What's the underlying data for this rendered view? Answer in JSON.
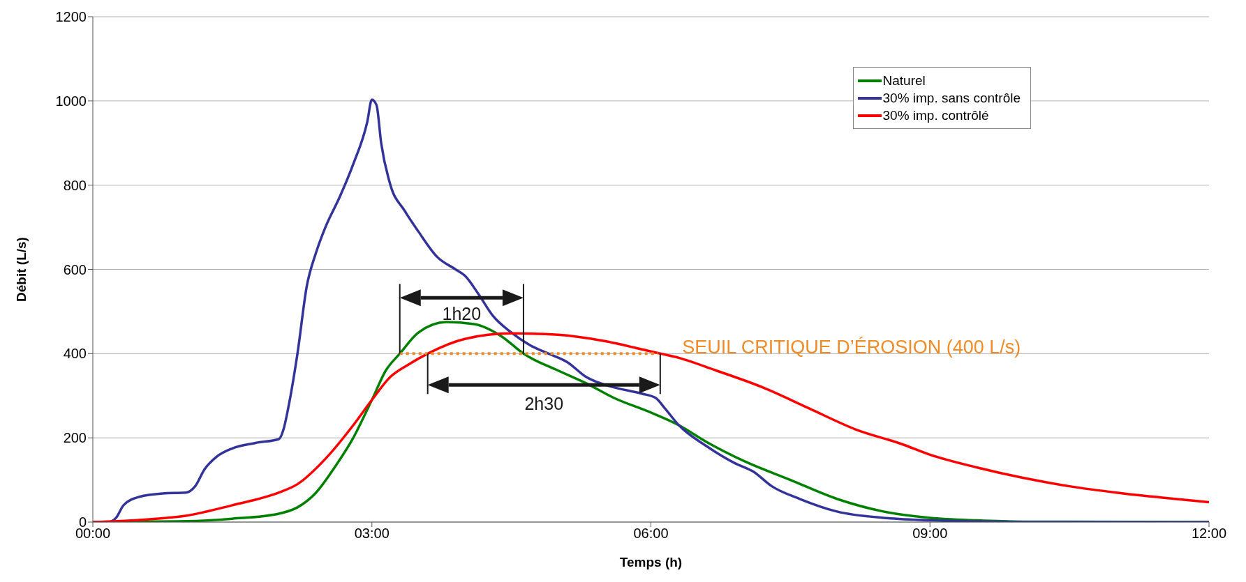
{
  "chart_data": {
    "type": "line",
    "xlabel": "Temps (h)",
    "ylabel": "Débit (L/s)",
    "xlim": [
      0,
      12
    ],
    "xticks": [
      {
        "value": 0,
        "label": "00:00"
      },
      {
        "value": 3,
        "label": "03:00"
      },
      {
        "value": 6,
        "label": "06:00"
      },
      {
        "value": 9,
        "label": "09:00"
      },
      {
        "value": 12,
        "label": "12:00"
      }
    ],
    "ylim": [
      0,
      1200
    ],
    "yticks": [
      0,
      200,
      400,
      600,
      800,
      1000,
      1200
    ],
    "grid": "y",
    "legend": "top right",
    "marker": "none",
    "series": [
      {
        "name": "Naturel",
        "color": "#008000",
        "x": [
          0,
          1,
          1.5,
          2,
          2.2,
          2.4,
          2.6,
          2.8,
          3,
          3.15,
          3.3,
          3.5,
          3.8,
          4.1,
          4.4,
          4.63,
          5,
          5.3,
          5.6,
          6,
          6.3,
          6.6,
          7,
          7.5,
          8,
          8.5,
          9,
          9.5,
          10,
          12
        ],
        "values": [
          0,
          2,
          8,
          20,
          35,
          70,
          130,
          200,
          290,
          360,
          400,
          450,
          475,
          470,
          440,
          400,
          360,
          330,
          295,
          260,
          230,
          190,
          145,
          100,
          55,
          25,
          10,
          4,
          1,
          0
        ]
      },
      {
        "name": "30% imp. sans contrôle",
        "color": "#333399",
        "x": [
          0,
          0.17,
          0.25,
          0.33,
          0.5,
          0.75,
          1,
          1.1,
          1.2,
          1.33,
          1.5,
          1.75,
          2,
          2.05,
          2.1,
          2.2,
          2.3,
          2.4,
          2.5,
          2.65,
          2.8,
          2.95,
          3,
          3.05,
          3.1,
          3.2,
          3.35,
          3.5,
          3.7,
          3.9,
          4,
          4.15,
          4.3,
          4.5,
          4.7,
          4.9,
          5.1,
          5.3,
          5.6,
          5.9,
          6.05,
          6.15,
          6.3,
          6.6,
          6.9,
          7.1,
          7.3,
          7.6,
          8,
          8.5,
          9,
          10,
          12
        ],
        "values": [
          0,
          0,
          10,
          40,
          60,
          68,
          70,
          85,
          125,
          155,
          175,
          188,
          197,
          220,
          270,
          400,
          560,
          640,
          700,
          770,
          850,
          950,
          1003,
          990,
          900,
          800,
          740,
          690,
          630,
          600,
          585,
          540,
          490,
          450,
          420,
          400,
          380,
          345,
          320,
          305,
          295,
          270,
          230,
          180,
          140,
          120,
          85,
          55,
          25,
          10,
          4,
          0,
          0
        ]
      },
      {
        "name": "30% imp. contrôlé",
        "color": "#ff0000",
        "x": [
          0,
          0.5,
          1,
          1.5,
          2,
          2.2,
          2.5,
          2.8,
          3,
          3.2,
          3.4,
          3.6,
          4,
          4.5,
          5,
          5.5,
          6,
          6.3,
          6.7,
          7.2,
          7.7,
          8.2,
          8.7,
          9,
          9.5,
          10,
          10.5,
          11,
          11.5,
          12
        ],
        "values": [
          0,
          5,
          15,
          40,
          70,
          90,
          150,
          230,
          290,
          345,
          375,
          400,
          435,
          448,
          445,
          430,
          405,
          390,
          360,
          320,
          270,
          220,
          185,
          160,
          130,
          105,
          85,
          70,
          58,
          47
        ]
      },
      {
        "name": "SEUIL CRITIQUE D’ÉROSION (400 L/s)",
        "color": "#f08c28",
        "line_style": "dotted",
        "x": [
          3.3,
          6.08
        ],
        "values": [
          400,
          400
        ]
      }
    ],
    "annotations": [
      "1h20",
      "2h30"
    ]
  }
}
